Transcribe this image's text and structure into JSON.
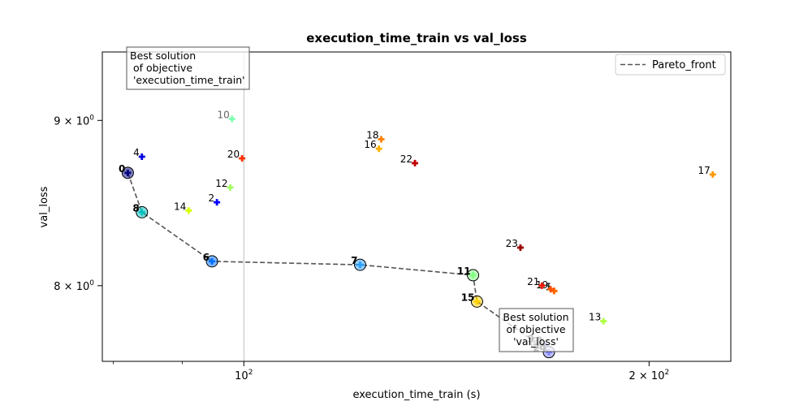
{
  "chart_data": {
    "type": "scatter",
    "title": "execution_time_train vs val_loss",
    "xlabel": "execution_time_train (s)",
    "ylabel": "val_loss",
    "xscale": "log",
    "yscale": "log",
    "xlim": [
      78.5,
      230.0
    ],
    "ylim": [
      7.58,
      9.45
    ],
    "grid": false,
    "legend": {
      "placement": "top-right",
      "entries": [
        "Pareto_front"
      ]
    },
    "x_ticks": [
      {
        "value": 100,
        "base": "10",
        "exp": "2"
      },
      {
        "value": 200,
        "base": "2 × 10",
        "exp": "2"
      }
    ],
    "y_ticks": [
      {
        "value": 8,
        "base": "8 × 10",
        "exp": "0"
      },
      {
        "value": 9,
        "base": "9 × 10",
        "exp": "0"
      }
    ],
    "x_minor_ticks": [
      80,
      90,
      300
    ],
    "reference_line_x": 100,
    "points": [
      {
        "id": "0",
        "x": 82.0,
        "y": 8.67,
        "color": "#00007f",
        "pareto": true
      },
      {
        "id": "1",
        "x": 170.0,
        "y": 7.97,
        "color": "#ff4a00",
        "pareto": false
      },
      {
        "id": "2",
        "x": 95.5,
        "y": 8.49,
        "color": "#0000ff",
        "pareto": false
      },
      {
        "id": "3",
        "x": 167.5,
        "y": 7.67,
        "color": "#7d7dff",
        "pareto": false
      },
      {
        "id": "4",
        "x": 84.0,
        "y": 8.77,
        "color": "#0000e0",
        "pareto": false
      },
      {
        "id": "5",
        "x": 170.0,
        "y": 7.97,
        "color": "#ff6a00",
        "pareto": false
      },
      {
        "id": "6",
        "x": 94.7,
        "y": 8.14,
        "color": "#0070ff",
        "pareto": true
      },
      {
        "id": "7",
        "x": 122.0,
        "y": 8.12,
        "color": "#2ca0ff",
        "pareto": true
      },
      {
        "id": "8",
        "x": 84.0,
        "y": 8.43,
        "color": "#00c0c0",
        "pareto": true
      },
      {
        "id": "9",
        "x": 165.0,
        "y": 7.68,
        "color": "#999999",
        "pareto": true
      },
      {
        "id": "10",
        "x": 98.0,
        "y": 9.01,
        "color": "#7dffb0",
        "pareto": false
      },
      {
        "id": "11",
        "x": 148.0,
        "y": 8.06,
        "color": "#80ff80",
        "pareto": true
      },
      {
        "id": "12",
        "x": 97.7,
        "y": 8.58,
        "color": "#a0ff60",
        "pareto": false
      },
      {
        "id": "13",
        "x": 185.0,
        "y": 7.8,
        "color": "#b0ff40",
        "pareto": false
      },
      {
        "id": "14",
        "x": 91.0,
        "y": 8.44,
        "color": "#d4ff00",
        "pareto": false
      },
      {
        "id": "15",
        "x": 149.0,
        "y": 7.91,
        "color": "#ffd000",
        "pareto": true
      },
      {
        "id": "16",
        "x": 126.0,
        "y": 8.82,
        "color": "#ffb000",
        "pareto": false
      },
      {
        "id": "17",
        "x": 223.0,
        "y": 8.66,
        "color": "#ff9900",
        "pareto": false
      },
      {
        "id": "18",
        "x": 126.5,
        "y": 8.88,
        "color": "#ff8000",
        "pareto": false
      },
      {
        "id": "19",
        "x": 169.0,
        "y": 7.98,
        "color": "#ff5000",
        "pareto": false
      },
      {
        "id": "20",
        "x": 99.7,
        "y": 8.76,
        "color": "#ff3000",
        "pareto": false
      },
      {
        "id": "21",
        "x": 166.5,
        "y": 8.0,
        "color": "#ee1a00",
        "pareto": false
      },
      {
        "id": "22",
        "x": 134.0,
        "y": 8.73,
        "color": "#c00000",
        "pareto": false
      },
      {
        "id": "23",
        "x": 160.5,
        "y": 8.22,
        "color": "#9a0000",
        "pareto": false
      },
      {
        "id": "24",
        "x": 168.5,
        "y": 7.63,
        "color": "#8080ff",
        "pareto": true
      }
    ],
    "pareto_front": [
      {
        "x": 82.0,
        "y": 8.67
      },
      {
        "x": 84.0,
        "y": 8.43
      },
      {
        "x": 94.7,
        "y": 8.14
      },
      {
        "x": 122.0,
        "y": 8.12
      },
      {
        "x": 148.0,
        "y": 8.06
      },
      {
        "x": 149.0,
        "y": 7.91
      },
      {
        "x": 165.0,
        "y": 7.68
      },
      {
        "x": 168.5,
        "y": 7.63
      }
    ],
    "annotations": [
      {
        "name": "best-train-time",
        "lines": [
          "Best solution",
          " of objective",
          " 'execution_time_train'"
        ]
      },
      {
        "name": "best-val-loss",
        "lines": [
          "Best solution",
          "of objective",
          "'val_loss'"
        ]
      }
    ]
  }
}
